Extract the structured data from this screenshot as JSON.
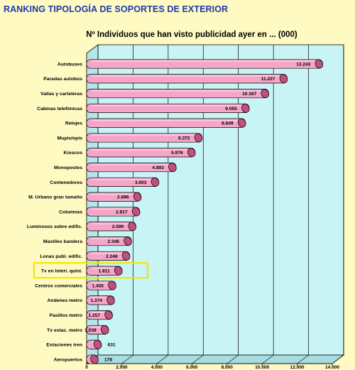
{
  "page": {
    "title": "RANKING TIPOLOGÍA DE SOPORTES DE EXTERIOR"
  },
  "colors": {
    "background": "#FFF9C2",
    "title": "#1c3aa8",
    "plot_area": "#C8F4F6",
    "bar": "#F5A6C8",
    "bar_end": "#C0507E",
    "highlight": "#F2E600"
  },
  "chart_data": {
    "type": "bar",
    "orientation": "horizontal",
    "title": "Nº Individuos que han visto publicidad ayer en ... (000)",
    "xlabel": "",
    "ylabel": "",
    "xlim": [
      0,
      14000
    ],
    "x_ticks": [
      "0",
      "2.000",
      "4.000",
      "6.000",
      "8.000",
      "10.000",
      "12.000",
      "14.000"
    ],
    "grid": true,
    "legend": "none",
    "highlighted_category": "Tv en loteri. quini.",
    "categories": [
      "Autobuses",
      "Paradas autobús",
      "Vallas y carteleras",
      "Cabinas telefónicas",
      "Relojes",
      "Mupis/opis",
      "Kioscos",
      "Monopostes",
      "Contenedores",
      "M. Urbano gran tamaño",
      "Columnas",
      "Luminosos sobre edific.",
      "Mastiles bandera",
      "Lonas publ. edific.",
      "Tv en loteri. quini.",
      "Centros comerciales",
      "Andenes metro",
      "Pasillos metro",
      "Tv estac. metro",
      "Estaciones tren",
      "Aeropuertos"
    ],
    "values": [
      13243,
      11227,
      10167,
      9055,
      8849,
      6372,
      5976,
      4892,
      3903,
      2896,
      2817,
      2599,
      2346,
      2248,
      1811,
      1455,
      1374,
      1257,
      1039,
      631,
      178
    ],
    "value_labels": [
      "13.243",
      "11.227",
      "10.167",
      "9.055",
      "8.849",
      "6.372",
      "5.976",
      "4.892",
      "3.903",
      "2.896",
      "2.817",
      "2.599",
      "2.346",
      "2.248",
      "1.811",
      "1.455",
      "1.374",
      "1.257",
      "1.039",
      "631",
      "178"
    ]
  }
}
